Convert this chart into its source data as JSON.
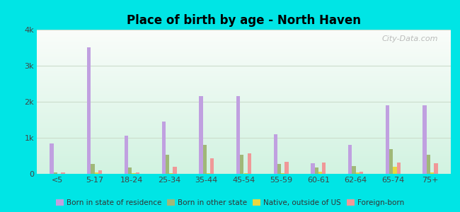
{
  "title": "Place of birth by age - North Haven",
  "categories": [
    "<5",
    "5-17",
    "18-24",
    "25-34",
    "35-44",
    "45-54",
    "55-59",
    "60-61",
    "62-64",
    "65-74",
    "75+"
  ],
  "born_in_state": [
    850,
    3500,
    1050,
    1450,
    2150,
    2150,
    1100,
    300,
    800,
    1900,
    1900
  ],
  "born_other_state": [
    30,
    280,
    180,
    530,
    800,
    520,
    270,
    170,
    220,
    680,
    520
  ],
  "native_outside": [
    5,
    30,
    20,
    20,
    20,
    20,
    20,
    60,
    30,
    190,
    30
  ],
  "foreign_born": [
    30,
    90,
    40,
    200,
    430,
    560,
    340,
    310,
    60,
    320,
    290
  ],
  "bar_colors": {
    "born_in_state": "#c0a0e0",
    "born_other_state": "#a0b878",
    "native_outside": "#e8d840",
    "foreign_born": "#f09898"
  },
  "legend_labels": [
    "Born in state of residence",
    "Born in other state",
    "Native, outside of US",
    "Foreign-born"
  ],
  "ylim": [
    0,
    4000
  ],
  "yticks": [
    0,
    1000,
    2000,
    3000,
    4000
  ],
  "ytick_labels": [
    "0",
    "1k",
    "2k",
    "3k",
    "4k"
  ],
  "background_color": "#00e5e5",
  "watermark": "City-Data.com"
}
